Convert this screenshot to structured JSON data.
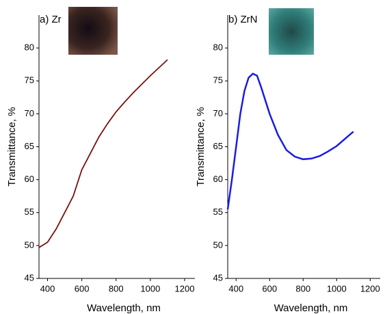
{
  "chart_data": [
    {
      "type": "line",
      "title": "a) Zr",
      "x_label": "Wavelength, nm",
      "y_label": "Transmittance, %",
      "x": [
        350,
        400,
        450,
        500,
        550,
        600,
        650,
        700,
        750,
        800,
        850,
        900,
        950,
        1000,
        1050,
        1100
      ],
      "values": [
        49.7,
        50.5,
        52.5,
        55,
        57.5,
        61.5,
        64,
        66.5,
        68.5,
        70.3,
        71.8,
        73.2,
        74.5,
        75.8,
        77,
        78.2
      ],
      "color": "#7b0e0e",
      "xlim": [
        350,
        1260
      ],
      "ylim": [
        45,
        85
      ],
      "xticks": [
        400,
        600,
        800,
        1000,
        1200
      ],
      "yticks": [
        45,
        50,
        55,
        60,
        65,
        70,
        75,
        80
      ]
    },
    {
      "type": "line",
      "title": "b) ZrN",
      "x_label": "Wavelength, nm",
      "y_label": "Transmittance, %",
      "x": [
        350,
        375,
        400,
        425,
        450,
        475,
        500,
        525,
        550,
        600,
        650,
        700,
        750,
        800,
        850,
        900,
        950,
        1000,
        1050,
        1100
      ],
      "values": [
        55.5,
        60,
        65,
        70,
        73.5,
        75.5,
        76.1,
        75.8,
        74,
        70,
        66.8,
        64.5,
        63.5,
        63.1,
        63.2,
        63.6,
        64.3,
        65.1,
        66.2,
        67.3
      ],
      "color": "#1a1ae6",
      "xlim": [
        350,
        1260
      ],
      "ylim": [
        45,
        85
      ],
      "xticks": [
        400,
        600,
        800,
        1000,
        1200
      ],
      "yticks": [
        45,
        50,
        55,
        60,
        65,
        70,
        75,
        80
      ]
    }
  ]
}
